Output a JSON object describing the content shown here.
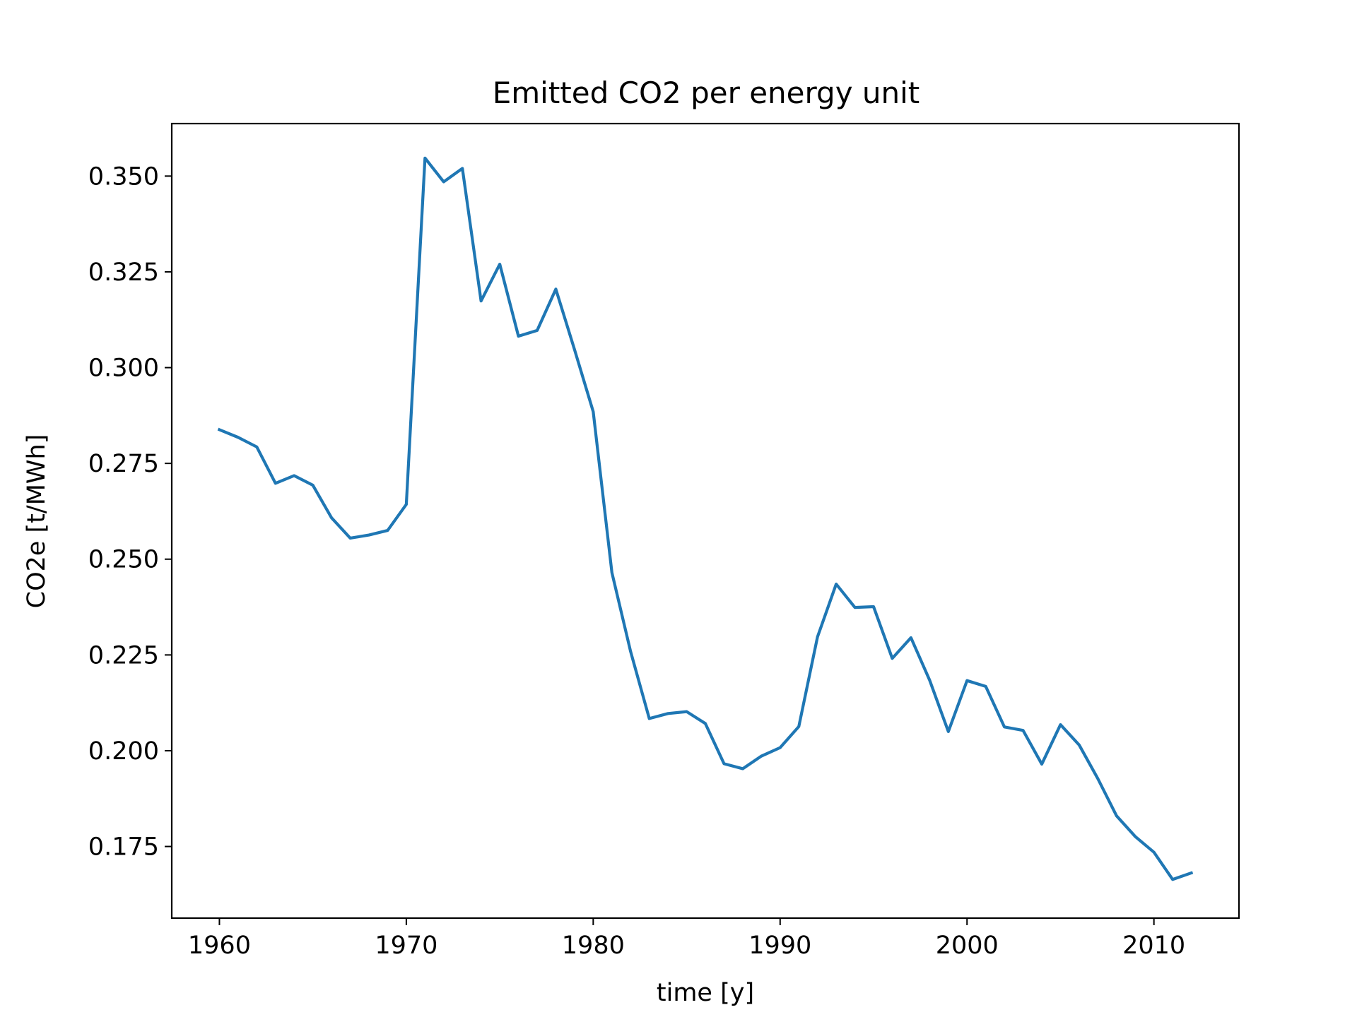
{
  "chart_data": {
    "type": "line",
    "title": "Emitted CO2 per energy unit",
    "xlabel": "time [y]",
    "ylabel": "CO2e [t/MWh]",
    "xlim": [
      1957.45,
      2014.55
    ],
    "ylim": [
      0.1563,
      0.3637
    ],
    "grid": false,
    "legend": "none",
    "x_ticks": [
      1960,
      1970,
      1980,
      1990,
      2000,
      2010
    ],
    "x_tick_labels": [
      "1960",
      "1970",
      "1980",
      "1990",
      "2000",
      "2010"
    ],
    "y_ticks": [
      0.175,
      0.2,
      0.225,
      0.25,
      0.275,
      0.3,
      0.325,
      0.35
    ],
    "y_tick_labels": [
      "0.175",
      "0.200",
      "0.225",
      "0.250",
      "0.275",
      "0.300",
      "0.325",
      "0.350"
    ],
    "series": [
      {
        "color": "#1f77b4",
        "x": [
          1960,
          1961,
          1962,
          1963,
          1964,
          1965,
          1966,
          1967,
          1968,
          1969,
          1970,
          1971,
          1972,
          1973,
          1974,
          1975,
          1976,
          1977,
          1978,
          1979,
          1980,
          1981,
          1982,
          1983,
          1984,
          1985,
          1986,
          1987,
          1988,
          1989,
          1990,
          1991,
          1992,
          1993,
          1994,
          1995,
          1996,
          1997,
          1998,
          1999,
          2000,
          2001,
          2002,
          2003,
          2004,
          2005,
          2006,
          2007,
          2008,
          2009,
          2010,
          2011,
          2012
        ],
        "y": [
          0.2838,
          0.2818,
          0.2793,
          0.2698,
          0.2718,
          0.2693,
          0.2608,
          0.2555,
          0.2563,
          0.2575,
          0.2643,
          0.3547,
          0.3485,
          0.352,
          0.3174,
          0.327,
          0.3082,
          0.3097,
          0.3205,
          0.3047,
          0.2885,
          0.2465,
          0.2259,
          0.2084,
          0.2097,
          0.2102,
          0.2071,
          0.1966,
          0.1953,
          0.1986,
          0.2008,
          0.2063,
          0.2297,
          0.2435,
          0.2374,
          0.2376,
          0.2241,
          0.2295,
          0.2184,
          0.205,
          0.2183,
          0.2168,
          0.2062,
          0.2053,
          0.1965,
          0.2068,
          0.2015,
          0.1927,
          0.183,
          0.1776,
          0.1735,
          0.1664,
          0.1681
        ]
      }
    ]
  }
}
